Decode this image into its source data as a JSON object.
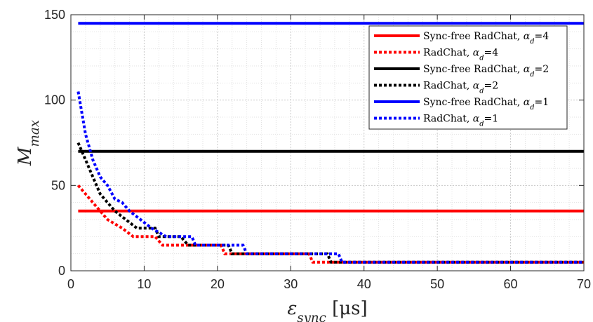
{
  "chart_data": {
    "type": "line",
    "xlabel": "ε_sync [μs]",
    "ylabel": "M_max",
    "xlim": [
      0,
      70
    ],
    "ylim": [
      0,
      150
    ],
    "x_ticks": [
      0,
      10,
      20,
      30,
      40,
      50,
      60,
      70
    ],
    "y_ticks": [
      0,
      50,
      100,
      150
    ],
    "grid": "major and minor dotted",
    "legend_position": "top-right",
    "series": [
      {
        "name": "Sync-free RadChat, αd=4",
        "color": "#ff0000",
        "style": "solid",
        "points": [
          [
            1,
            35
          ],
          [
            70,
            35
          ]
        ]
      },
      {
        "name": "RadChat, αd=4",
        "color": "#ff0000",
        "style": "dotted",
        "points": [
          [
            1,
            50
          ],
          [
            2,
            45
          ],
          [
            3,
            40
          ],
          [
            4,
            35
          ],
          [
            5,
            30
          ],
          [
            7,
            25
          ],
          [
            8.5,
            20
          ],
          [
            11.5,
            20
          ],
          [
            12.5,
            15
          ],
          [
            20.5,
            15
          ],
          [
            21,
            10
          ],
          [
            32.5,
            10
          ],
          [
            33,
            5
          ],
          [
            70,
            5
          ]
        ]
      },
      {
        "name": "Sync-free RadChat, αd=2",
        "color": "#000000",
        "style": "solid",
        "points": [
          [
            1,
            70
          ],
          [
            70,
            70
          ]
        ]
      },
      {
        "name": "RadChat, αd=2",
        "color": "#000000",
        "style": "dotted",
        "points": [
          [
            1,
            75
          ],
          [
            2,
            65
          ],
          [
            3,
            55
          ],
          [
            4,
            45
          ],
          [
            5,
            40
          ],
          [
            6,
            35
          ],
          [
            7.5,
            30
          ],
          [
            9,
            25
          ],
          [
            11.5,
            25
          ],
          [
            12,
            20
          ],
          [
            15,
            20
          ],
          [
            16,
            15
          ],
          [
            21.5,
            15
          ],
          [
            22,
            10
          ],
          [
            35,
            10
          ],
          [
            35.5,
            5
          ],
          [
            70,
            5
          ]
        ]
      },
      {
        "name": "Sync-free RadChat, αd=1",
        "color": "#0000ff",
        "style": "solid",
        "points": [
          [
            1,
            145
          ],
          [
            70,
            145
          ]
        ]
      },
      {
        "name": "RadChat, αd=1",
        "color": "#0000ff",
        "style": "dotted",
        "points": [
          [
            1,
            105
          ],
          [
            2,
            80
          ],
          [
            3,
            65
          ],
          [
            4,
            55
          ],
          [
            5,
            50
          ],
          [
            6,
            42
          ],
          [
            7,
            40
          ],
          [
            8,
            35
          ],
          [
            9.5,
            30
          ],
          [
            11,
            25
          ],
          [
            13,
            20
          ],
          [
            16.5,
            20
          ],
          [
            17,
            15
          ],
          [
            23.5,
            15
          ],
          [
            24,
            10
          ],
          [
            36.5,
            10
          ],
          [
            37,
            5
          ],
          [
            70,
            5
          ]
        ]
      }
    ]
  }
}
